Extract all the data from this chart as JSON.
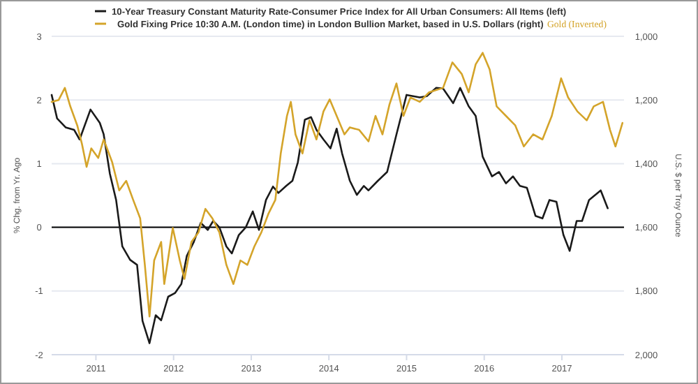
{
  "chart_data": {
    "type": "line",
    "ylabel": "% Chg. from Yr. Ago",
    "y2label": "U.S. $ per Troy Ounce",
    "annotations": [
      "Gold (Inverted)"
    ],
    "xlim": [
      2010.43,
      2017.8
    ],
    "xticks": [
      2011,
      2012,
      2013,
      2014,
      2015,
      2016,
      2017
    ],
    "ylim": [
      -2,
      3
    ],
    "yticks": [
      -2,
      -1,
      0,
      1,
      2,
      3
    ],
    "y2lim": [
      2000,
      1000
    ],
    "y2ticks": [
      {
        "value": 1000,
        "label": "1,000"
      },
      {
        "value": 1200,
        "label": "1,200"
      },
      {
        "value": 1400,
        "label": "1,400"
      },
      {
        "value": 1600,
        "label": "1,600"
      },
      {
        "value": 1800,
        "label": "1,800"
      },
      {
        "value": 2000,
        "label": "2,000"
      }
    ],
    "grid": "y",
    "legend": "top",
    "marker": "none",
    "line_style": "solid",
    "ref_lines": [
      {
        "axis": "y",
        "value": 0,
        "color": "#000000"
      }
    ],
    "series": [
      {
        "name": "10-Year Treasury Constant Maturity Rate-Consumer Price Index for All Urban Consumers: All Items (left)",
        "color": "#1a1a1a",
        "x": [
          2010.43,
          2010.5,
          2010.61,
          2010.72,
          2010.79,
          2010.93,
          2011.05,
          2011.1,
          2011.18,
          2011.26,
          2011.34,
          2011.44,
          2011.53,
          2011.6,
          2011.69,
          2011.77,
          2011.84,
          2011.93,
          2012.02,
          2012.1,
          2012.17,
          2012.26,
          2012.35,
          2012.44,
          2012.51,
          2012.59,
          2012.68,
          2012.75,
          2012.84,
          2012.93,
          2013.02,
          2013.1,
          2013.19,
          2013.28,
          2013.35,
          2013.45,
          2013.53,
          2013.6,
          2013.69,
          2013.77,
          2013.84,
          2013.93,
          2014.02,
          2014.1,
          2014.17,
          2014.27,
          2014.36,
          2014.45,
          2014.51,
          2014.63,
          2014.75,
          2014.87,
          2015.0,
          2015.17,
          2015.26,
          2015.38,
          2015.47,
          2015.6,
          2015.69,
          2015.8,
          2015.89,
          2015.98,
          2016.1,
          2016.19,
          2016.28,
          2016.37,
          2016.46,
          2016.55,
          2016.66,
          2016.75,
          2016.84,
          2016.93,
          2017.02,
          2017.1,
          2017.19,
          2017.26,
          2017.35,
          2017.5,
          2017.59
        ],
        "values": [
          2.08,
          1.71,
          1.57,
          1.53,
          1.38,
          1.85,
          1.64,
          1.46,
          0.84,
          0.43,
          -0.3,
          -0.51,
          -0.59,
          -1.47,
          -1.82,
          -1.38,
          -1.46,
          -1.09,
          -1.03,
          -0.89,
          -0.45,
          -0.23,
          0.07,
          -0.04,
          0.1,
          0.0,
          -0.3,
          -0.41,
          -0.12,
          0.0,
          0.25,
          -0.04,
          0.43,
          0.64,
          0.54,
          0.65,
          0.73,
          1.02,
          1.69,
          1.73,
          1.53,
          1.38,
          1.24,
          1.55,
          1.16,
          0.73,
          0.51,
          0.65,
          0.58,
          0.73,
          0.87,
          1.46,
          2.08,
          2.04,
          2.06,
          2.19,
          2.18,
          1.95,
          2.19,
          1.9,
          1.75,
          1.11,
          0.8,
          0.87,
          0.69,
          0.8,
          0.65,
          0.62,
          0.18,
          0.14,
          0.43,
          0.4,
          -0.12,
          -0.37,
          0.1,
          0.1,
          0.43,
          0.58,
          0.3
        ]
      },
      {
        "name": "Gold Fixing Price 10:30 A.M. (London time) in London Bullion Market, based in U.S. Dollars (right)",
        "color": "#d4a42a",
        "axis": "y2",
        "x": [
          2010.43,
          2010.52,
          2010.6,
          2010.67,
          2010.76,
          2010.82,
          2010.88,
          2010.94,
          2011.03,
          2011.1,
          2011.21,
          2011.3,
          2011.39,
          2011.48,
          2011.57,
          2011.63,
          2011.69,
          2011.75,
          2011.84,
          2011.88,
          2011.99,
          2012.08,
          2012.14,
          2012.23,
          2012.32,
          2012.41,
          2012.5,
          2012.59,
          2012.68,
          2012.77,
          2012.86,
          2012.95,
          2013.04,
          2013.13,
          2013.22,
          2013.31,
          2013.38,
          2013.46,
          2013.51,
          2013.57,
          2013.66,
          2013.75,
          2013.84,
          2013.93,
          2014.01,
          2014.1,
          2014.2,
          2014.27,
          2014.39,
          2014.51,
          2014.6,
          2014.69,
          2014.78,
          2014.87,
          2014.96,
          2015.05,
          2015.17,
          2015.29,
          2015.47,
          2015.59,
          2015.71,
          2015.8,
          2015.89,
          2015.98,
          2016.07,
          2016.16,
          2016.28,
          2016.4,
          2016.51,
          2016.63,
          2016.75,
          2016.87,
          2016.99,
          2017.08,
          2017.2,
          2017.32,
          2017.41,
          2017.53,
          2017.62,
          2017.69,
          2017.78
        ],
        "values": [
          1206,
          1200,
          1162,
          1220,
          1280,
          1338,
          1410,
          1352,
          1382,
          1324,
          1396,
          1484,
          1454,
          1514,
          1572,
          1718,
          1880,
          1704,
          1646,
          1778,
          1602,
          1704,
          1762,
          1646,
          1616,
          1542,
          1572,
          1616,
          1718,
          1778,
          1704,
          1718,
          1660,
          1616,
          1558,
          1514,
          1368,
          1250,
          1206,
          1308,
          1368,
          1264,
          1324,
          1236,
          1198,
          1250,
          1308,
          1286,
          1294,
          1330,
          1250,
          1308,
          1214,
          1148,
          1250,
          1192,
          1206,
          1176,
          1162,
          1082,
          1118,
          1176,
          1088,
          1052,
          1104,
          1220,
          1250,
          1280,
          1346,
          1308,
          1324,
          1250,
          1132,
          1192,
          1236,
          1264,
          1220,
          1206,
          1294,
          1346,
          1272
        ]
      }
    ]
  }
}
